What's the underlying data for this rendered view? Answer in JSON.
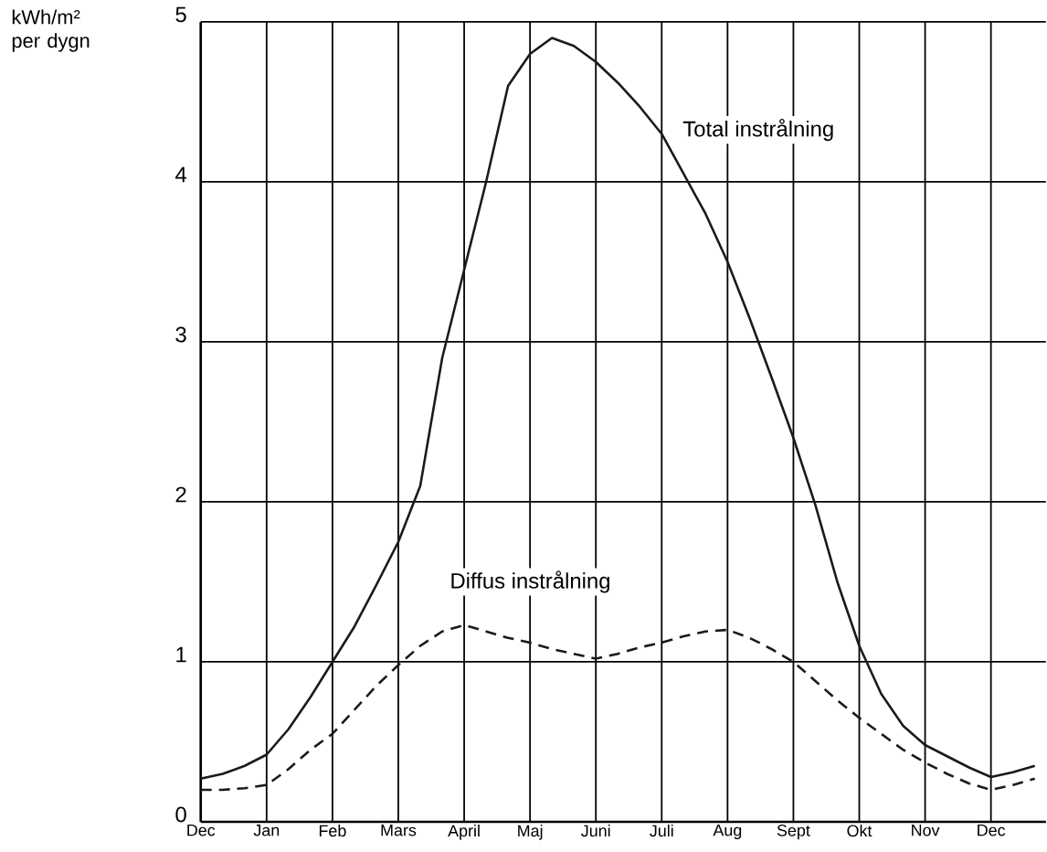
{
  "chart_data": {
    "type": "line",
    "ylabel": "kWh/m² per dygn",
    "categories": [
      "Dec",
      null,
      null,
      "Jan",
      null,
      null,
      "Feb",
      null,
      null,
      "Mars",
      null,
      null,
      "April",
      null,
      null,
      "Maj",
      null,
      null,
      "Juni",
      null,
      null,
      "Juli",
      null,
      null,
      "Aug",
      null,
      null,
      "Sept",
      null,
      null,
      "Okt",
      null,
      null,
      "Nov",
      null,
      null,
      "Dec",
      null,
      null
    ],
    "ylim": [
      0,
      5
    ],
    "yticks": [
      0,
      1,
      2,
      3,
      4,
      5
    ],
    "grid": true,
    "legend": false,
    "marker": "none",
    "series": [
      {
        "name": "Total instrålning",
        "color": "#1a1a1a",
        "line_style": "solid",
        "values": [
          0.27,
          0.3,
          0.35,
          0.42,
          0.58,
          0.78,
          1.0,
          1.22,
          1.48,
          1.75,
          2.1,
          2.9,
          3.45,
          4.0,
          4.6,
          4.8,
          4.9,
          4.85,
          4.75,
          4.62,
          4.47,
          4.3,
          4.05,
          3.8,
          3.5,
          3.15,
          2.78,
          2.4,
          1.98,
          1.5,
          1.1,
          0.8,
          0.6,
          0.48,
          0.41,
          0.34,
          0.28,
          0.31,
          0.35
        ]
      },
      {
        "name": "Diffus instrålning",
        "color": "#1a1a1a",
        "line_style": "dashed",
        "values": [
          0.2,
          0.2,
          0.21,
          0.23,
          0.33,
          0.45,
          0.55,
          0.7,
          0.85,
          0.98,
          1.1,
          1.19,
          1.23,
          1.19,
          1.15,
          1.12,
          1.08,
          1.05,
          1.02,
          1.05,
          1.09,
          1.12,
          1.16,
          1.19,
          1.2,
          1.15,
          1.08,
          1.0,
          0.88,
          0.76,
          0.65,
          0.55,
          0.45,
          0.37,
          0.3,
          0.24,
          0.2,
          0.23,
          0.27
        ]
      }
    ]
  }
}
